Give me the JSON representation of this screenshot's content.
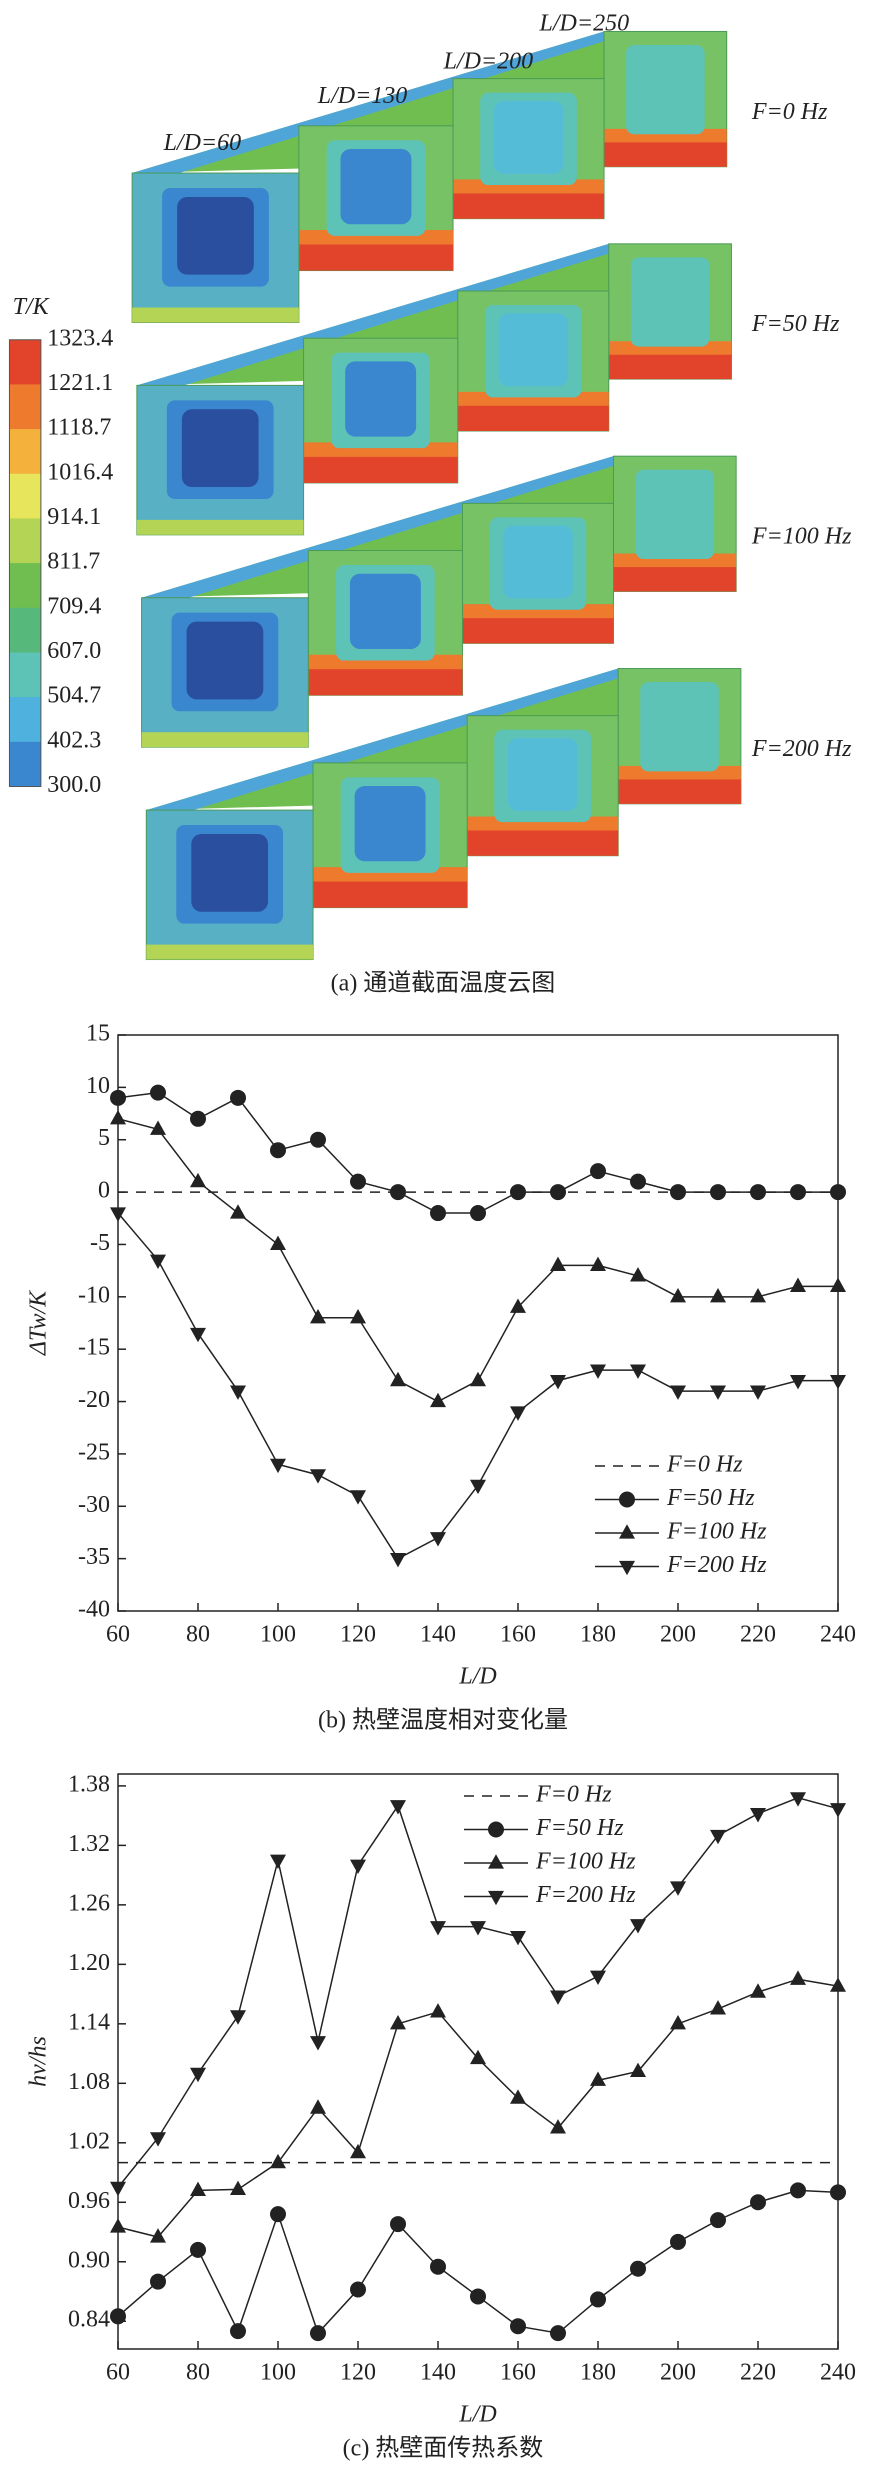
{
  "panel_a": {
    "caption": "(a) 通道截面温度云图",
    "colorbar_title": "T/K",
    "colorbar_labels": [
      "1323.4",
      "1221.1",
      "1118.7",
      "1016.4",
      "914.1",
      "811.7",
      "709.4",
      "607.0",
      "504.7",
      "402.3",
      "300.0"
    ],
    "colorbar_colors": [
      "#e2432b",
      "#ee7a2e",
      "#f4b23c",
      "#e6e55c",
      "#b4d455",
      "#6fbe4f",
      "#57b87c",
      "#5dc3b6",
      "#4fb2de",
      "#3a86cf"
    ],
    "section_labels": [
      "L/D=60",
      "L/D=130",
      "L/D=200",
      "L/D=250"
    ],
    "row_labels": [
      "F=0 Hz",
      "F=50 Hz",
      "F=100 Hz",
      "F=200 Hz"
    ]
  },
  "chart_data": [
    {
      "type": "line",
      "caption": "(b) 热壁温度相对变化量",
      "x_label": "L/D",
      "y_label": "ΔTw/K",
      "x": [
        60,
        70,
        80,
        90,
        100,
        110,
        120,
        130,
        140,
        150,
        160,
        170,
        180,
        190,
        200,
        210,
        220,
        230,
        240
      ],
      "xlim": [
        60,
        240
      ],
      "xticks": [
        60,
        80,
        100,
        120,
        140,
        160,
        180,
        200,
        220,
        240
      ],
      "ylim": [
        -40,
        15
      ],
      "yticks": [
        -40,
        -35,
        -30,
        -25,
        -20,
        -15,
        -10,
        -5,
        0,
        5,
        10,
        15
      ],
      "legend": "lower right",
      "series": [
        {
          "name": "F=0 Hz",
          "color": "#222222",
          "marker": "none",
          "dashed": true,
          "values": [
            0,
            0,
            0,
            0,
            0,
            0,
            0,
            0,
            0,
            0,
            0,
            0,
            0,
            0,
            0,
            0,
            0,
            0,
            0
          ]
        },
        {
          "name": "F=50 Hz",
          "color": "#222222",
          "marker": "circle",
          "dashed": false,
          "values": [
            9,
            9.5,
            7,
            9,
            4,
            5,
            1,
            0,
            -2,
            -2,
            0,
            0,
            2,
            1,
            0,
            0,
            0,
            0,
            0
          ]
        },
        {
          "name": "F=100 Hz",
          "color": "#222222",
          "marker": "triangle-up",
          "dashed": false,
          "values": [
            7,
            6,
            1,
            -2,
            -5,
            -12,
            -12,
            -18,
            -20,
            -18,
            -11,
            -7,
            -7,
            -8,
            -10,
            -10,
            -10,
            -9,
            -9
          ]
        },
        {
          "name": "F=200 Hz",
          "color": "#222222",
          "marker": "triangle-down",
          "dashed": false,
          "values": [
            -2,
            -6.5,
            -13.5,
            -19,
            -26,
            -27,
            -29,
            -35,
            -33,
            -28,
            -21,
            -18,
            -17,
            -17,
            -19,
            -19,
            -19,
            -18,
            -18
          ]
        }
      ]
    },
    {
      "type": "line",
      "caption": "(c) 热壁面传热系数",
      "x_label": "L/D",
      "y_label": "hv/hs",
      "x": [
        60,
        70,
        80,
        90,
        100,
        110,
        120,
        130,
        140,
        150,
        160,
        170,
        180,
        190,
        200,
        210,
        220,
        230,
        240
      ],
      "xlim": [
        60,
        240
      ],
      "xticks": [
        60,
        80,
        100,
        120,
        140,
        160,
        180,
        200,
        220,
        240
      ],
      "ylim": [
        0.812,
        1.392
      ],
      "yticks": [
        0.84,
        {
          "value": 0.9,
          "label": "0.90"
        },
        0.96,
        1.02,
        1.08,
        1.14,
        {
          "value": 1.2,
          "label": "1.20"
        },
        1.26,
        1.32,
        1.38
      ],
      "legend": "upper center",
      "series": [
        {
          "name": "F=0 Hz",
          "color": "#222222",
          "marker": "none",
          "dashed": true,
          "values": [
            1,
            1,
            1,
            1,
            1,
            1,
            1,
            1,
            1,
            1,
            1,
            1,
            1,
            1,
            1,
            1,
            1,
            1,
            1
          ]
        },
        {
          "name": "F=50 Hz",
          "color": "#222222",
          "marker": "circle",
          "dashed": false,
          "values": [
            0.845,
            0.88,
            0.912,
            0.83,
            0.948,
            0.828,
            0.872,
            0.938,
            0.895,
            0.865,
            0.835,
            0.828,
            0.862,
            0.893,
            0.92,
            0.942,
            0.96,
            0.972,
            0.97
          ]
        },
        {
          "name": "F=100 Hz",
          "color": "#222222",
          "marker": "triangle-up",
          "dashed": false,
          "values": [
            0.935,
            0.925,
            0.972,
            0.973,
            1.0,
            1.055,
            1.01,
            1.14,
            1.152,
            1.105,
            1.065,
            1.035,
            1.083,
            1.092,
            1.14,
            1.155,
            1.172,
            1.185,
            1.178
          ]
        },
        {
          "name": "F=200 Hz",
          "color": "#222222",
          "marker": "triangle-down",
          "dashed": false,
          "values": [
            0.975,
            1.025,
            1.09,
            1.148,
            1.305,
            1.122,
            1.3,
            1.36,
            1.238,
            1.238,
            1.228,
            1.168,
            1.188,
            1.24,
            1.278,
            1.33,
            1.352,
            1.368,
            1.357
          ]
        }
      ]
    }
  ]
}
